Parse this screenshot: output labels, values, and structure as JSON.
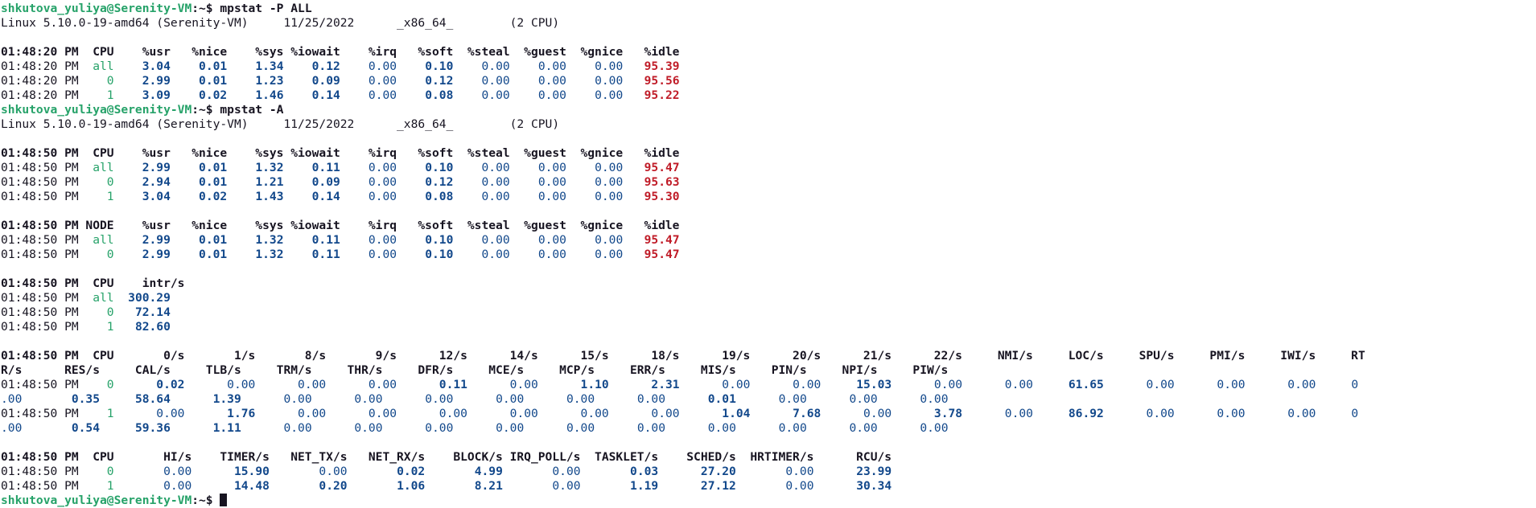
{
  "terminal": {
    "lines": [
      [
        {
          "t": "shkutova_yuliya@Serenity-VM",
          "c": "prompt"
        },
        {
          "t": ":~$ mpstat -P ALL",
          "c": "b"
        }
      ],
      [
        {
          "t": "Linux 5.10.0-19-amd64 (Serenity-VM)     11/25/2022      _x86_64_        (2 CPU)"
        }
      ],
      [],
      [
        {
          "t": "01:48:20 PM  CPU    %usr   %nice    %sys %iowait    %irq   %soft  %steal  %guest  %gnice   %idle",
          "c": "b"
        }
      ],
      [
        {
          "t": "01:48:20 PM"
        },
        {
          "t": "  all",
          "c": "green"
        },
        {
          "t": "    3.04",
          "c": "blue b"
        },
        {
          "t": "    0.01",
          "c": "blue b"
        },
        {
          "t": "    1.34",
          "c": "blue b"
        },
        {
          "t": "    0.12",
          "c": "blue b"
        },
        {
          "t": "    0.00",
          "c": "blue"
        },
        {
          "t": "    0.10",
          "c": "blue b"
        },
        {
          "t": "    0.00",
          "c": "blue"
        },
        {
          "t": "    0.00",
          "c": "blue"
        },
        {
          "t": "    0.00",
          "c": "blue"
        },
        {
          "t": "   95.39",
          "c": "red"
        }
      ],
      [
        {
          "t": "01:48:20 PM"
        },
        {
          "t": "    0",
          "c": "green"
        },
        {
          "t": "    2.99",
          "c": "blue b"
        },
        {
          "t": "    0.01",
          "c": "blue b"
        },
        {
          "t": "    1.23",
          "c": "blue b"
        },
        {
          "t": "    0.09",
          "c": "blue b"
        },
        {
          "t": "    0.00",
          "c": "blue"
        },
        {
          "t": "    0.12",
          "c": "blue b"
        },
        {
          "t": "    0.00",
          "c": "blue"
        },
        {
          "t": "    0.00",
          "c": "blue"
        },
        {
          "t": "    0.00",
          "c": "blue"
        },
        {
          "t": "   95.56",
          "c": "red"
        }
      ],
      [
        {
          "t": "01:48:20 PM"
        },
        {
          "t": "    1",
          "c": "green"
        },
        {
          "t": "    3.09",
          "c": "blue b"
        },
        {
          "t": "    0.02",
          "c": "blue b"
        },
        {
          "t": "    1.46",
          "c": "blue b"
        },
        {
          "t": "    0.14",
          "c": "blue b"
        },
        {
          "t": "    0.00",
          "c": "blue"
        },
        {
          "t": "    0.08",
          "c": "blue b"
        },
        {
          "t": "    0.00",
          "c": "blue"
        },
        {
          "t": "    0.00",
          "c": "blue"
        },
        {
          "t": "    0.00",
          "c": "blue"
        },
        {
          "t": "   95.22",
          "c": "red"
        }
      ],
      [
        {
          "t": "shkutova_yuliya@Serenity-VM",
          "c": "prompt"
        },
        {
          "t": ":~$ mpstat -A",
          "c": "b"
        }
      ],
      [
        {
          "t": "Linux 5.10.0-19-amd64 (Serenity-VM)     11/25/2022      _x86_64_        (2 CPU)"
        }
      ],
      [],
      [
        {
          "t": "01:48:50 PM  CPU    %usr   %nice    %sys %iowait    %irq   %soft  %steal  %guest  %gnice   %idle",
          "c": "b"
        }
      ],
      [
        {
          "t": "01:48:50 PM"
        },
        {
          "t": "  all",
          "c": "green"
        },
        {
          "t": "    2.99",
          "c": "blue b"
        },
        {
          "t": "    0.01",
          "c": "blue b"
        },
        {
          "t": "    1.32",
          "c": "blue b"
        },
        {
          "t": "    0.11",
          "c": "blue b"
        },
        {
          "t": "    0.00",
          "c": "blue"
        },
        {
          "t": "    0.10",
          "c": "blue b"
        },
        {
          "t": "    0.00",
          "c": "blue"
        },
        {
          "t": "    0.00",
          "c": "blue"
        },
        {
          "t": "    0.00",
          "c": "blue"
        },
        {
          "t": "   95.47",
          "c": "red"
        }
      ],
      [
        {
          "t": "01:48:50 PM"
        },
        {
          "t": "    0",
          "c": "green"
        },
        {
          "t": "    2.94",
          "c": "blue b"
        },
        {
          "t": "    0.01",
          "c": "blue b"
        },
        {
          "t": "    1.21",
          "c": "blue b"
        },
        {
          "t": "    0.09",
          "c": "blue b"
        },
        {
          "t": "    0.00",
          "c": "blue"
        },
        {
          "t": "    0.12",
          "c": "blue b"
        },
        {
          "t": "    0.00",
          "c": "blue"
        },
        {
          "t": "    0.00",
          "c": "blue"
        },
        {
          "t": "    0.00",
          "c": "blue"
        },
        {
          "t": "   95.63",
          "c": "red"
        }
      ],
      [
        {
          "t": "01:48:50 PM"
        },
        {
          "t": "    1",
          "c": "green"
        },
        {
          "t": "    3.04",
          "c": "blue b"
        },
        {
          "t": "    0.02",
          "c": "blue b"
        },
        {
          "t": "    1.43",
          "c": "blue b"
        },
        {
          "t": "    0.14",
          "c": "blue b"
        },
        {
          "t": "    0.00",
          "c": "blue"
        },
        {
          "t": "    0.08",
          "c": "blue b"
        },
        {
          "t": "    0.00",
          "c": "blue"
        },
        {
          "t": "    0.00",
          "c": "blue"
        },
        {
          "t": "    0.00",
          "c": "blue"
        },
        {
          "t": "   95.30",
          "c": "red"
        }
      ],
      [],
      [
        {
          "t": "01:48:50 PM NODE    %usr   %nice    %sys %iowait    %irq   %soft  %steal  %guest  %gnice   %idle",
          "c": "b"
        }
      ],
      [
        {
          "t": "01:48:50 PM"
        },
        {
          "t": "  all",
          "c": "green"
        },
        {
          "t": "    2.99",
          "c": "blue b"
        },
        {
          "t": "    0.01",
          "c": "blue b"
        },
        {
          "t": "    1.32",
          "c": "blue b"
        },
        {
          "t": "    0.11",
          "c": "blue b"
        },
        {
          "t": "    0.00",
          "c": "blue"
        },
        {
          "t": "    0.10",
          "c": "blue b"
        },
        {
          "t": "    0.00",
          "c": "blue"
        },
        {
          "t": "    0.00",
          "c": "blue"
        },
        {
          "t": "    0.00",
          "c": "blue"
        },
        {
          "t": "   95.47",
          "c": "red"
        }
      ],
      [
        {
          "t": "01:48:50 PM"
        },
        {
          "t": "    0",
          "c": "green"
        },
        {
          "t": "    2.99",
          "c": "blue b"
        },
        {
          "t": "    0.01",
          "c": "blue b"
        },
        {
          "t": "    1.32",
          "c": "blue b"
        },
        {
          "t": "    0.11",
          "c": "blue b"
        },
        {
          "t": "    0.00",
          "c": "blue"
        },
        {
          "t": "    0.10",
          "c": "blue b"
        },
        {
          "t": "    0.00",
          "c": "blue"
        },
        {
          "t": "    0.00",
          "c": "blue"
        },
        {
          "t": "    0.00",
          "c": "blue"
        },
        {
          "t": "   95.47",
          "c": "red"
        }
      ],
      [],
      [
        {
          "t": "01:48:50 PM  CPU    intr/s",
          "c": "b"
        }
      ],
      [
        {
          "t": "01:48:50 PM"
        },
        {
          "t": "  all",
          "c": "green"
        },
        {
          "t": "  300.29",
          "c": "blue b"
        }
      ],
      [
        {
          "t": "01:48:50 PM"
        },
        {
          "t": "    0",
          "c": "green"
        },
        {
          "t": "   72.14",
          "c": "blue b"
        }
      ],
      [
        {
          "t": "01:48:50 PM"
        },
        {
          "t": "    1",
          "c": "green"
        },
        {
          "t": "   82.60",
          "c": "blue b"
        }
      ],
      [],
      [
        {
          "t": "01:48:50 PM  CPU       0/s       1/s       8/s       9/s      12/s      14/s      15/s      18/s      19/s      20/s      21/s      22/s     NMI/s     LOC/s     SPU/s     PMI/s     IWI/s     RT",
          "c": "b"
        }
      ],
      [
        {
          "t": "R/s      RES/s     CAL/s     TLB/s     TRM/s     THR/s     DFR/s     MCE/s     MCP/s     ERR/s     MIS/s     PIN/s     NPI/s     PIW/s",
          "c": "b"
        }
      ],
      [
        {
          "t": "01:48:50 PM"
        },
        {
          "t": "    0",
          "c": "green"
        },
        {
          "t": "      0.02",
          "c": "blue b"
        },
        {
          "t": "      0.00",
          "c": "blue"
        },
        {
          "t": "      0.00",
          "c": "blue"
        },
        {
          "t": "      0.00",
          "c": "blue"
        },
        {
          "t": "      0.11",
          "c": "blue b"
        },
        {
          "t": "      0.00",
          "c": "blue"
        },
        {
          "t": "      1.10",
          "c": "blue b"
        },
        {
          "t": "      2.31",
          "c": "blue b"
        },
        {
          "t": "      0.00",
          "c": "blue"
        },
        {
          "t": "      0.00",
          "c": "blue"
        },
        {
          "t": "     15.03",
          "c": "blue b"
        },
        {
          "t": "      0.00",
          "c": "blue"
        },
        {
          "t": "      0.00",
          "c": "blue"
        },
        {
          "t": "     61.65",
          "c": "blue b"
        },
        {
          "t": "      0.00",
          "c": "blue"
        },
        {
          "t": "      0.00",
          "c": "blue"
        },
        {
          "t": "      0.00",
          "c": "blue"
        },
        {
          "t": "     0",
          "c": "blue"
        }
      ],
      [
        {
          "t": ".00",
          "c": "blue"
        },
        {
          "t": "       0.35",
          "c": "blue b"
        },
        {
          "t": "     58.64",
          "c": "blue b"
        },
        {
          "t": "      1.39",
          "c": "blue b"
        },
        {
          "t": "      0.00",
          "c": "blue"
        },
        {
          "t": "      0.00",
          "c": "blue"
        },
        {
          "t": "      0.00",
          "c": "blue"
        },
        {
          "t": "      0.00",
          "c": "blue"
        },
        {
          "t": "      0.00",
          "c": "blue"
        },
        {
          "t": "      0.00",
          "c": "blue"
        },
        {
          "t": "      0.01",
          "c": "blue b"
        },
        {
          "t": "      0.00",
          "c": "blue"
        },
        {
          "t": "      0.00",
          "c": "blue"
        },
        {
          "t": "      0.00",
          "c": "blue"
        }
      ],
      [
        {
          "t": "01:48:50 PM"
        },
        {
          "t": "    1",
          "c": "green"
        },
        {
          "t": "      0.00",
          "c": "blue"
        },
        {
          "t": "      1.76",
          "c": "blue b"
        },
        {
          "t": "      0.00",
          "c": "blue"
        },
        {
          "t": "      0.00",
          "c": "blue"
        },
        {
          "t": "      0.00",
          "c": "blue"
        },
        {
          "t": "      0.00",
          "c": "blue"
        },
        {
          "t": "      0.00",
          "c": "blue"
        },
        {
          "t": "      0.00",
          "c": "blue"
        },
        {
          "t": "      1.04",
          "c": "blue b"
        },
        {
          "t": "      7.68",
          "c": "blue b"
        },
        {
          "t": "      0.00",
          "c": "blue"
        },
        {
          "t": "      3.78",
          "c": "blue b"
        },
        {
          "t": "      0.00",
          "c": "blue"
        },
        {
          "t": "     86.92",
          "c": "blue b"
        },
        {
          "t": "      0.00",
          "c": "blue"
        },
        {
          "t": "      0.00",
          "c": "blue"
        },
        {
          "t": "      0.00",
          "c": "blue"
        },
        {
          "t": "     0",
          "c": "blue"
        }
      ],
      [
        {
          "t": ".00",
          "c": "blue"
        },
        {
          "t": "       0.54",
          "c": "blue b"
        },
        {
          "t": "     59.36",
          "c": "blue b"
        },
        {
          "t": "      1.11",
          "c": "blue b"
        },
        {
          "t": "      0.00",
          "c": "blue"
        },
        {
          "t": "      0.00",
          "c": "blue"
        },
        {
          "t": "      0.00",
          "c": "blue"
        },
        {
          "t": "      0.00",
          "c": "blue"
        },
        {
          "t": "      0.00",
          "c": "blue"
        },
        {
          "t": "      0.00",
          "c": "blue"
        },
        {
          "t": "      0.00",
          "c": "blue"
        },
        {
          "t": "      0.00",
          "c": "blue"
        },
        {
          "t": "      0.00",
          "c": "blue"
        },
        {
          "t": "      0.00",
          "c": "blue"
        }
      ],
      [],
      [
        {
          "t": "01:48:50 PM  CPU       HI/s    TIMER/s   NET_TX/s   NET_RX/s    BLOCK/s IRQ_POLL/s  TASKLET/s    SCHED/s  HRTIMER/s      RCU/s",
          "c": "b"
        }
      ],
      [
        {
          "t": "01:48:50 PM"
        },
        {
          "t": "    0",
          "c": "green"
        },
        {
          "t": "       0.00",
          "c": "blue"
        },
        {
          "t": "      15.90",
          "c": "blue b"
        },
        {
          "t": "       0.00",
          "c": "blue"
        },
        {
          "t": "       0.02",
          "c": "blue b"
        },
        {
          "t": "       4.99",
          "c": "blue b"
        },
        {
          "t": "       0.00",
          "c": "blue"
        },
        {
          "t": "       0.03",
          "c": "blue b"
        },
        {
          "t": "      27.20",
          "c": "blue b"
        },
        {
          "t": "       0.00",
          "c": "blue"
        },
        {
          "t": "      23.99",
          "c": "blue b"
        }
      ],
      [
        {
          "t": "01:48:50 PM"
        },
        {
          "t": "    1",
          "c": "green"
        },
        {
          "t": "       0.00",
          "c": "blue"
        },
        {
          "t": "      14.48",
          "c": "blue b"
        },
        {
          "t": "       0.20",
          "c": "blue b"
        },
        {
          "t": "       1.06",
          "c": "blue b"
        },
        {
          "t": "       8.21",
          "c": "blue b"
        },
        {
          "t": "       0.00",
          "c": "blue"
        },
        {
          "t": "       1.19",
          "c": "blue b"
        },
        {
          "t": "      27.12",
          "c": "blue b"
        },
        {
          "t": "       0.00",
          "c": "blue"
        },
        {
          "t": "      30.34",
          "c": "blue b"
        }
      ],
      [
        {
          "t": "shkutova_yuliya@Serenity-VM",
          "c": "prompt"
        },
        {
          "t": ":~$ ",
          "c": "b"
        },
        {
          "t": "",
          "c": "cursor"
        }
      ]
    ]
  },
  "colors": {
    "background": "#ffffff",
    "text": "#171421",
    "prompt_green": "#26a269",
    "value_blue": "#12488b",
    "idle_red": "#c01c28"
  }
}
